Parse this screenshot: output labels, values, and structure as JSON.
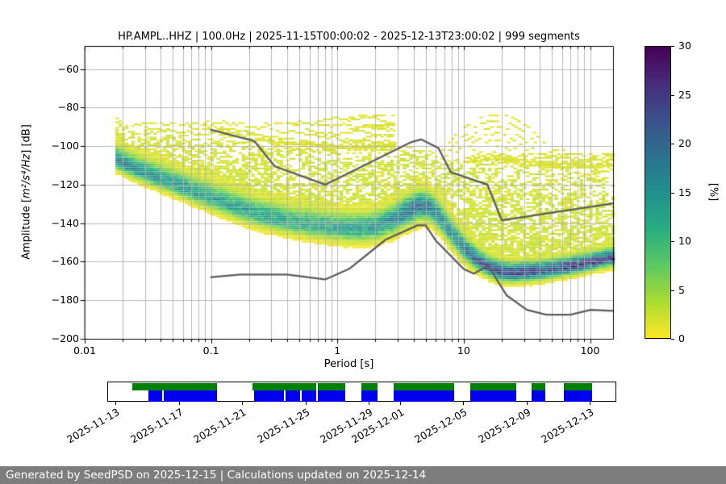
{
  "title": "HP.AMPL..HHZ | 100.0Hz | 2025-11-15T00:00:02 - 2025-12-13T23:00:02 | 999 segments",
  "psd_plot": {
    "xlabel": "Period [s]",
    "ylabel_prefix": "Amplitude [",
    "ylabel_math": "m²/s⁴/Hz",
    "ylabel_suffix": "] [dB]",
    "x_tick_labels": [
      "0.01",
      "0.1",
      "1",
      "10",
      "100"
    ],
    "x_tick_values": [
      0.01,
      0.1,
      1,
      10,
      100
    ],
    "y_tick_values": [
      -60,
      -80,
      -100,
      -120,
      -140,
      -160,
      -180,
      -200
    ],
    "colorbar": {
      "label": "[%]",
      "ticks": [
        0,
        5,
        10,
        15,
        20,
        25,
        30
      ],
      "min": 0,
      "max": 30,
      "colormap": "viridis_r"
    }
  },
  "chart_data": {
    "type": "heatmap",
    "title": "HP.AMPL..HHZ | 100.0Hz | 2025-11-15T00:00:02 - 2025-12-13T23:00:02 | 999 segments",
    "xlabel": "Period [s]",
    "ylabel": "Amplitude [m²/s⁴/Hz] [dB]",
    "x_scale": "log",
    "xlim": [
      0.01,
      152
    ],
    "ylim": [
      -200,
      -48
    ],
    "grid": true,
    "colorbar": {
      "label": "[%]",
      "range": [
        0,
        30
      ],
      "colormap": "viridis_r"
    },
    "period_range_s": [
      0.018,
      152
    ],
    "mode_curve": [
      [
        0.018,
        -108.5
      ],
      [
        0.025,
        -113
      ],
      [
        0.04,
        -118
      ],
      [
        0.063,
        -123
      ],
      [
        0.1,
        -128
      ],
      [
        0.16,
        -133
      ],
      [
        0.25,
        -137
      ],
      [
        0.4,
        -140
      ],
      [
        0.63,
        -142
      ],
      [
        1.0,
        -143.5
      ],
      [
        1.4,
        -144
      ],
      [
        2.0,
        -143
      ],
      [
        2.8,
        -139
      ],
      [
        3.5,
        -135
      ],
      [
        4.5,
        -132
      ],
      [
        5.3,
        -132.5
      ],
      [
        6.3,
        -137
      ],
      [
        7.9,
        -146
      ],
      [
        10,
        -154
      ],
      [
        12.6,
        -160
      ],
      [
        15.8,
        -164
      ],
      [
        20,
        -166.5
      ],
      [
        25,
        -167
      ],
      [
        40,
        -166
      ],
      [
        63,
        -164
      ],
      [
        100,
        -161.5
      ],
      [
        126,
        -160
      ],
      [
        152,
        -159
      ]
    ],
    "peak_percent": [
      [
        0.018,
        17
      ],
      [
        0.04,
        14
      ],
      [
        0.1,
        13
      ],
      [
        0.4,
        12
      ],
      [
        1,
        12
      ],
      [
        2.2,
        14
      ],
      [
        4,
        19
      ],
      [
        5,
        18
      ],
      [
        7,
        15
      ],
      [
        10,
        17
      ],
      [
        13,
        20
      ],
      [
        18,
        23
      ],
      [
        30,
        23
      ],
      [
        50,
        22
      ],
      [
        80,
        24
      ],
      [
        120,
        25
      ],
      [
        152,
        25
      ]
    ],
    "sigma_down_db": [
      [
        0.018,
        2.6
      ],
      [
        0.1,
        3.2
      ],
      [
        1,
        3.6
      ],
      [
        4,
        4.2
      ],
      [
        8,
        3.6
      ],
      [
        15,
        2.6
      ],
      [
        152,
        2.2
      ]
    ],
    "sigma_up_db": [
      [
        0.018,
        4.2
      ],
      [
        0.1,
        5.0
      ],
      [
        1,
        5.0
      ],
      [
        4,
        4.6
      ],
      [
        8,
        4.6
      ],
      [
        15,
        3.4
      ],
      [
        152,
        3.0
      ]
    ],
    "upper_envelope": [
      [
        0.018,
        -88
      ],
      [
        0.03,
        -93
      ],
      [
        0.1,
        -97
      ],
      [
        0.3,
        -102
      ],
      [
        1,
        -106
      ],
      [
        2.8,
        -104
      ],
      [
        4,
        -102
      ],
      [
        6.3,
        -107
      ],
      [
        10,
        -111
      ],
      [
        18,
        -109
      ],
      [
        30,
        -113
      ],
      [
        60,
        -116
      ],
      [
        100,
        -117
      ],
      [
        152,
        -118
      ]
    ],
    "scatter": {
      "dome_center_s": 18,
      "dome_top_db": -85,
      "dome_arcs": 9,
      "left_streaks": 22,
      "right_streaks": 14,
      "streak_db_range": [
        -86,
        -132
      ]
    },
    "noise_models": {
      "color": "#5c5c5c",
      "nhnm": [
        [
          0.1,
          -91.5
        ],
        [
          0.22,
          -97.4
        ],
        [
          0.32,
          -110.5
        ],
        [
          0.8,
          -120.0
        ],
        [
          3.8,
          -98.0
        ],
        [
          4.6,
          -96.5
        ],
        [
          6.3,
          -101.0
        ],
        [
          7.9,
          -113.5
        ],
        [
          15.4,
          -120.0
        ],
        [
          20.0,
          -138.5
        ],
        [
          152.0,
          -129.7
        ]
      ],
      "nlnm": [
        [
          0.1,
          -168.0
        ],
        [
          0.17,
          -166.7
        ],
        [
          0.4,
          -166.7
        ],
        [
          0.8,
          -169.2
        ],
        [
          1.24,
          -163.7
        ],
        [
          2.4,
          -148.6
        ],
        [
          4.3,
          -141.1
        ],
        [
          5.0,
          -141.1
        ],
        [
          6.0,
          -149.0
        ],
        [
          10.0,
          -163.8
        ],
        [
          12.0,
          -166.2
        ],
        [
          15.6,
          -162.1
        ],
        [
          21.9,
          -177.5
        ],
        [
          31.6,
          -185.0
        ],
        [
          45.0,
          -187.5
        ],
        [
          70.0,
          -187.5
        ],
        [
          101.0,
          -185.0
        ],
        [
          152.0,
          -185.5
        ]
      ]
    }
  },
  "availability": {
    "green_color": "#008000",
    "blue_color": "#0000ee",
    "green_segments": [
      [
        0.0475,
        0.2139
      ],
      [
        0.2853,
        0.4105
      ],
      [
        0.4129,
        0.4675
      ],
      [
        0.4992,
        0.5309
      ],
      [
        0.5626,
        0.6815
      ],
      [
        0.7132,
        0.8051
      ],
      [
        0.8352,
        0.8621
      ],
      [
        0.8986,
        0.9541
      ]
    ],
    "blue_segments": [
      [
        0.0792,
        0.1062
      ],
      [
        0.1094,
        0.2139
      ],
      [
        0.2884,
        0.3471
      ],
      [
        0.3502,
        0.3788
      ],
      [
        0.3819,
        0.4105
      ],
      [
        0.4129,
        0.4675
      ],
      [
        0.4992,
        0.5309
      ],
      [
        0.5626,
        0.6815
      ],
      [
        0.7132,
        0.8051
      ],
      [
        0.8352,
        0.8621
      ],
      [
        0.8986,
        0.9541
      ]
    ],
    "date_ticks": [
      {
        "label": "2025-11-13",
        "f": 0.0158
      },
      {
        "label": "2025-11-17",
        "f": 0.1403
      },
      {
        "label": "2025-11-21",
        "f": 0.2647
      },
      {
        "label": "2025-11-25",
        "f": 0.3891
      },
      {
        "label": "2025-11-29",
        "f": 0.5135
      },
      {
        "label": "2025-12-01",
        "f": 0.5753
      },
      {
        "label": "2025-12-05",
        "f": 0.6997
      },
      {
        "label": "2025-12-09",
        "f": 0.8241
      },
      {
        "label": "2025-12-13",
        "f": 0.9485
      }
    ]
  },
  "footer": {
    "text": "Generated by SeedPSD on 2025-12-15 | Calculations updated on 2025-12-14",
    "bg": "#7d7d7d"
  }
}
